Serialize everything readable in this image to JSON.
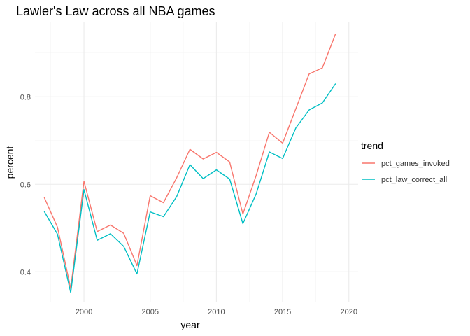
{
  "chart_data": {
    "type": "line",
    "title": "Lawler's Law across all NBA games",
    "xlabel": "year",
    "ylabel": "percent",
    "xlim": [
      1996.3,
      2020.7
    ],
    "ylim": [
      0.33,
      0.97
    ],
    "x_ticks": [
      2000,
      2005,
      2010,
      2015,
      2020
    ],
    "y_ticks": [
      0.4,
      0.6,
      0.8
    ],
    "y_tick_labels": [
      "0.4",
      "0.6",
      "0.8"
    ],
    "grid": true,
    "legend": {
      "title": "trend",
      "position": "right"
    },
    "x": [
      1997,
      1998,
      1999,
      2000,
      2001,
      2002,
      2003,
      2004,
      2005,
      2006,
      2007,
      2008,
      2009,
      2010,
      2011,
      2012,
      2013,
      2014,
      2015,
      2016,
      2017,
      2018,
      2019
    ],
    "series": [
      {
        "name": "pct_games_invoked",
        "color": "#F8766D",
        "values": [
          0.57,
          0.502,
          0.362,
          0.607,
          0.492,
          0.507,
          0.488,
          0.414,
          0.574,
          0.558,
          0.615,
          0.68,
          0.658,
          0.673,
          0.651,
          0.532,
          0.62,
          0.719,
          0.694,
          0.773,
          0.852,
          0.866,
          0.944
        ]
      },
      {
        "name": "pct_law_correct_all",
        "color": "#00BFC4",
        "values": [
          0.538,
          0.486,
          0.352,
          0.588,
          0.472,
          0.487,
          0.458,
          0.395,
          0.537,
          0.526,
          0.572,
          0.645,
          0.613,
          0.633,
          0.612,
          0.51,
          0.578,
          0.674,
          0.659,
          0.729,
          0.77,
          0.786,
          0.83
        ]
      }
    ]
  }
}
